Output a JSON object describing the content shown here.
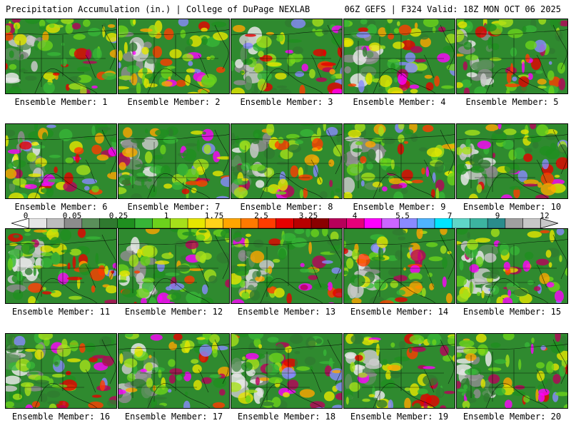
{
  "header": {
    "left": "Precipitation Accumulation (in.) | College of DuPage NEXLAB",
    "right": "06Z GEFS | F324 Valid: 18Z MON OCT 06 2025"
  },
  "legend": {
    "ticks": [
      "0",
      "0.05",
      "0.25",
      "1",
      "1.75",
      "2.5",
      "3.25",
      "4",
      "5.5",
      "7",
      "9",
      "12"
    ],
    "colors": [
      "#e6e6e6",
      "#bdbdbd",
      "#8c8c8c",
      "#5a8f5a",
      "#2f7a2f",
      "#1f8f1f",
      "#37b537",
      "#6cd21c",
      "#a6e01a",
      "#e6e600",
      "#ffd21a",
      "#ffa500",
      "#ff7a00",
      "#ff3c00",
      "#e60000",
      "#b80000",
      "#8a0000",
      "#b8005a",
      "#e6007a",
      "#ff00ff",
      "#cc66ff",
      "#8a8aff",
      "#4fb4ff",
      "#00e6ff",
      "#5fd6c8",
      "#3cb4a0",
      "#2a8c8c",
      "#a0a0a0",
      "#c8c8c8"
    ]
  },
  "members": [
    {
      "label": "Ensemble Member: 1"
    },
    {
      "label": "Ensemble Member: 2"
    },
    {
      "label": "Ensemble Member: 3"
    },
    {
      "label": "Ensemble Member: 4"
    },
    {
      "label": "Ensemble Member: 5"
    },
    {
      "label": "Ensemble Member: 6"
    },
    {
      "label": "Ensemble Member: 7"
    },
    {
      "label": "Ensemble Member: 8"
    },
    {
      "label": "Ensemble Member: 9"
    },
    {
      "label": "Ensemble Member: 10"
    },
    {
      "label": "Ensemble Member: 11"
    },
    {
      "label": "Ensemble Member: 12"
    },
    {
      "label": "Ensemble Member: 13"
    },
    {
      "label": "Ensemble Member: 14"
    },
    {
      "label": "Ensemble Member: 15"
    },
    {
      "label": "Ensemble Member: 16"
    },
    {
      "label": "Ensemble Member: 17"
    },
    {
      "label": "Ensemble Member: 18"
    },
    {
      "label": "Ensemble Member: 19"
    },
    {
      "label": "Ensemble Member: 20"
    }
  ]
}
